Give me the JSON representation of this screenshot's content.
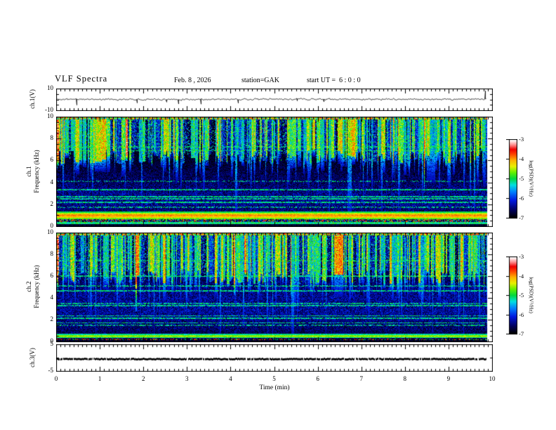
{
  "header": {
    "title": "VLF Spectra",
    "date": "Feb. 8 , 2026",
    "station": "station=GAK",
    "start_ut": "start UT =  6 : 0 : 0"
  },
  "x_axis": {
    "label": "Time (min)",
    "ticks": [
      "0",
      "1",
      "2",
      "3",
      "4",
      "5",
      "6",
      "7",
      "8",
      "9",
      "10"
    ],
    "range": [
      0,
      10
    ],
    "minor_step_min": 0.1
  },
  "panels": {
    "ch1v": {
      "ylabel": "ch.1(V)",
      "ytick_top": "10",
      "ytick_bottom": "-10",
      "ymin": -10,
      "ymax": 10
    },
    "ch1f": {
      "ylabel_line1": "ch.1",
      "ylabel_line2": "Frequency (kHz)",
      "yticks": [
        "10",
        "8",
        "6",
        "4",
        "2",
        "0"
      ],
      "ymin": 0,
      "ymax": 10
    },
    "ch2f": {
      "ylabel_line1": "ch.2",
      "ylabel_line2": "Frequency (kHz)",
      "yticks": [
        "10",
        "8",
        "6",
        "4",
        "2",
        "0"
      ],
      "ymin": 0,
      "ymax": 10
    },
    "ch3v": {
      "ylabel": "ch.3(V)",
      "ytick_top": "5",
      "ytick_bottom": "-5",
      "ymin": -5,
      "ymax": 5
    }
  },
  "colorbars": [
    {
      "label": "log(PSD)(V²/Hz)",
      "ticks": [
        "-3",
        "-4",
        "-5",
        "-6",
        "-7"
      ],
      "range": [
        -7,
        -3
      ]
    },
    {
      "label": "log(PSD)(V²/Hz)",
      "ticks": [
        "-3",
        "-4",
        "-5",
        "-6",
        "-7"
      ],
      "range": [
        -7,
        -3
      ]
    }
  ],
  "colormap": {
    "stops": [
      [
        0.0,
        "#000000"
      ],
      [
        0.1,
        "#000060"
      ],
      [
        0.22,
        "#0018e0"
      ],
      [
        0.33,
        "#0080ff"
      ],
      [
        0.42,
        "#00e0e0"
      ],
      [
        0.5,
        "#00d840"
      ],
      [
        0.58,
        "#60f000"
      ],
      [
        0.66,
        "#e8f000"
      ],
      [
        0.74,
        "#ffb000"
      ],
      [
        0.82,
        "#ff4000"
      ],
      [
        0.88,
        "#f00000"
      ],
      [
        0.94,
        "#ff9090"
      ],
      [
        1.0,
        "#ffffff"
      ]
    ]
  },
  "chart_data": [
    {
      "type": "line",
      "name": "ch.1 (V) broadband amplitude",
      "xlabel": "Time (min)",
      "xlim": [
        0,
        10
      ],
      "ylim": [
        -10,
        10
      ],
      "data_end_min": 9.85,
      "description": "Noisy trace fluctuating around ~+0.5 V (amplitude ~1.5 V) with sparse downward spikes to about -6 V and a tall upward spike at the right end.",
      "gen": {
        "seed": 11,
        "mean": 0.5,
        "amp": 1.6,
        "spike_p": 0.012,
        "ymax": 10
      }
    },
    {
      "type": "heatmap",
      "name": "ch.1 VLF spectrogram",
      "xlim": [
        0,
        10
      ],
      "ylim_khz": [
        0,
        10
      ],
      "zlim_log_psd": [
        -7,
        -3
      ],
      "data_end_min": 9.85,
      "description": "Dense vertical sferic streaks (green/yellow, occasionally orange-red) above ~6.5 kHz over a black/navy background below; speckled cyan horizontal interference lines near 7.0, 3.3, 2.5, 2.2 kHz; strong yellow/orange/red hum band at 0.7-1.3 kHz; multicolour speckle band 0.4-0.6 kHz; green speckle 0.2-0.3 kHz; black below 0.15 kHz.",
      "gen": {
        "seed": 23,
        "fmax": 10,
        "top_floor": 6.4,
        "bright_p": 0.34,
        "mid_p": 0.3,
        "special_p": 0.02,
        "bg_base": 0.07,
        "blue_bumps": [
          {
            "f": 2.4,
            "w": 1.1,
            "amp": 0.16
          },
          {
            "f": 4.6,
            "w": 0.7,
            "amp": 0.05
          }
        ],
        "cyan_lines": [
          {
            "f": 6.95
          },
          {
            "f": 7.3,
            "p": 0.5
          },
          {
            "f": 3.35
          },
          {
            "f": 2.7
          },
          {
            "f": 2.5
          },
          {
            "f": 2.15
          },
          {
            "f": 1.7,
            "p": 0.5
          },
          {
            "f": 4.15,
            "p": 0.35
          }
        ],
        "hum_lines": [
          {
            "f": 1.28,
            "t": 0.5,
            "h": 0.07
          },
          {
            "f": 1.13,
            "t": 0.64,
            "h": 0.07
          },
          {
            "f": 0.98,
            "t": 0.76,
            "h": 0.09
          },
          {
            "f": 0.82,
            "t": 0.7,
            "h": 0.07
          },
          {
            "f": 0.68,
            "t": 0.58,
            "h": 0.06
          }
        ],
        "speckle_bands": [
          {
            "f0": 0.36,
            "f1": 0.6,
            "palette": [
              0.82,
              0.25,
              0.5,
              0.06,
              0.06
            ]
          },
          {
            "f0": 0.17,
            "f1": 0.34,
            "palette": [
              0.5,
              0.45,
              0.55,
              0.4
            ]
          }
        ],
        "black_below": 0.15,
        "top_row": true
      }
    },
    {
      "type": "heatmap",
      "name": "ch.2 VLF spectrogram",
      "xlim": [
        0,
        10
      ],
      "ylim_khz": [
        0,
        10
      ],
      "zlim_log_psd": [
        -7,
        -3
      ],
      "data_end_min": 9.85,
      "description": "Similar sferic streaks above ~6 kHz (green/cyan), more cyan horizontal lines (6.0, 4.65, 3.3, 2.35, 2.1, 1.7 kHz); weaker hum: cyan/green-yellow lines near 0.6, 0.46, 0.32 kHz; red speckle near 0.2 kHz; black below 0.1 kHz.",
      "gen": {
        "seed": 57,
        "fmax": 10,
        "top_floor": 6.0,
        "bright_p": 0.3,
        "mid_p": 0.36,
        "special_p": 0.012,
        "bg_base": 0.09,
        "blue_bumps": [
          {
            "f": 2.8,
            "w": 1.4,
            "amp": 0.13
          },
          {
            "f": 5.0,
            "w": 0.9,
            "amp": 0.06
          }
        ],
        "cyan_lines": [
          {
            "f": 7.5,
            "p": 0.5
          },
          {
            "f": 6.05
          },
          {
            "f": 5.15,
            "p": 0.6
          },
          {
            "f": 4.65
          },
          {
            "f": 3.5,
            "p": 0.6
          },
          {
            "f": 3.3
          },
          {
            "f": 2.35
          },
          {
            "f": 2.1
          },
          {
            "f": 1.7
          },
          {
            "f": 1.45,
            "p": 0.5
          }
        ],
        "hum_lines": [
          {
            "f": 0.6,
            "t": 0.46,
            "h": 0.06
          },
          {
            "f": 0.46,
            "t": 0.6,
            "h": 0.07
          },
          {
            "f": 0.32,
            "t": 0.46,
            "h": 0.05
          }
        ],
        "speckle_bands": [
          {
            "f0": 0.1,
            "f1": 0.24,
            "palette": [
              0.84,
              0.06,
              0.06,
              0.5,
              0.06
            ]
          }
        ],
        "black_below": 0.1,
        "top_row": true
      }
    },
    {
      "type": "line",
      "name": "ch.3 (V)",
      "xlim": [
        0,
        10
      ],
      "ylim": [
        -5,
        5
      ],
      "data_end_min": 9.85,
      "description": "Flat thick black trace near 0 V (slightly below centre) for the full record.",
      "gen": {
        "seed": 77,
        "value": -0.4,
        "ymax": 5
      }
    }
  ]
}
